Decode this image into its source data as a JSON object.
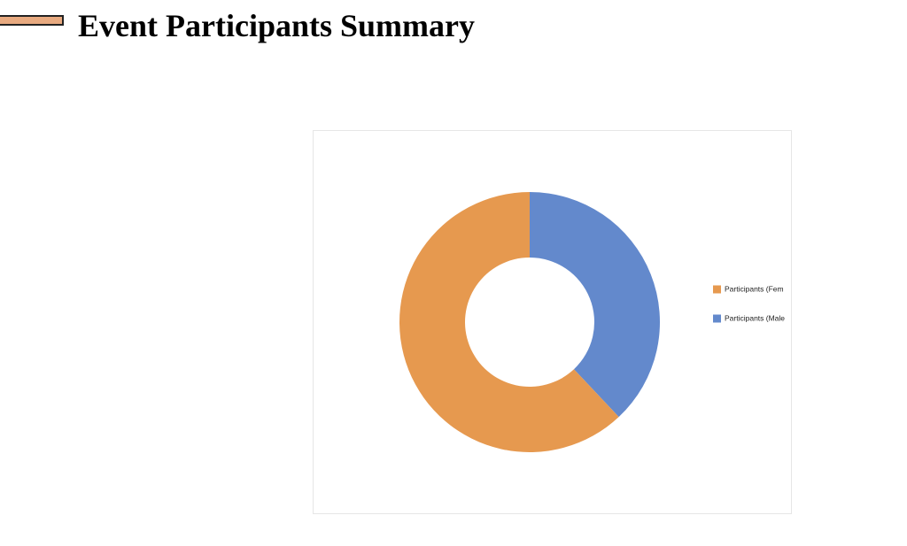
{
  "header": {
    "title": "Event Participants Summary"
  },
  "chart_data": {
    "type": "donut",
    "categories": [
      "Participants (Fem",
      "Participants (Male"
    ],
    "values": [
      62,
      38
    ],
    "colors": [
      "#e6994f",
      "#6389cc"
    ]
  }
}
